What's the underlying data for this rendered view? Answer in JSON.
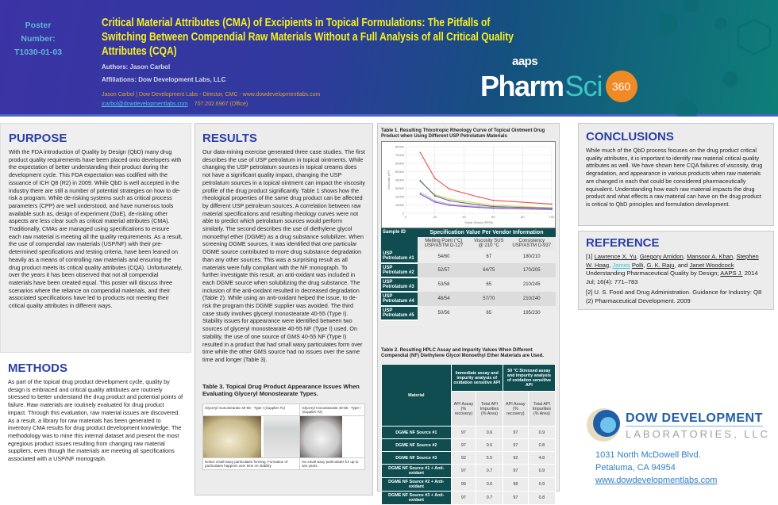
{
  "header": {
    "poster_number": [
      "Poster",
      "Number:",
      "T1030-01-03"
    ],
    "title": "Critical Material Attributes (CMA) of Excipients in Topical Formulations: The Pitfalls of Switching Between Compendial Raw Materials Without a Full Analysis of all Critical Quality Attributes (CQA)",
    "authors": "Authors: Jason Carbol",
    "affiliations": "Affiliations: Dow Development Labs, LLC",
    "contact_line": "Jason Carbol | Dow Development Labs - Director, CMC - www.dowdevelopmentlabs.com",
    "email": "jcarbol@dowdevelopmentlabs.com",
    "phone": "707.202.6967 (Office)",
    "logo": {
      "aaps": "aaps",
      "pharm": "Pharm",
      "sci": "Sci",
      "badge": "360"
    }
  },
  "purpose": {
    "heading": "PURPOSE",
    "text": "With the FDA introduction of Quality by Design (QbD) many drug product quality requirements have been placed onto developers with the expectation of better understanding their product during the development cycle. This FDA expectation was codified with the issuance of ICH Q8 (R2) in 2009. While QbD is well accepted in the industry there are still a number of potential strategies on how to de-risk a program. While de-risking systems such as critical process parameters (CPP) are well understood, and have numerous tools available such as, design of experiment (DoE), de-risking other aspects are less clear such as critical material attributes (CMA). Traditionally, CMAs are managed using specifications to ensure each raw material is meeting all the quality requirements. As a result, the use of compendial raw materials (USP/NF) with their pre-determined specifications and testing criteria, have been leaned on heavily as a means of controlling raw materials and ensuring the drug product meets its critical quality attributes (CQA). Unfortunately, over the years it has been observed that not all compendial materials have been created equal. This poster will discuss three scenarios where the reliance on compendial materials, and their associated specifications have led to products not meeting their critical quality attributes in different ways."
  },
  "methods": {
    "heading": "METHODS",
    "text": "As part of the topical drug product development cycle, quality by design is embraced and critical quality attributes are routinely stressed to better understand the drug product and potential points of failure. Raw materials are routinely evaluated for drug product impact. Through this evaluation, raw material issues are discovered. As a result, a library for raw materials has been generated to inventory CMA results for drug product development knowledge. The methodology was to mine this internal dataset and present the most egregious product issues resulting from changing raw material suppliers, even though the materials are meeting all specifications associated with a USP/NF monograph."
  },
  "results": {
    "heading": "RESULTS",
    "text": "Our data-mining exercise generated three case studies. The first describes the use of USP petrolatum in topical ointments. While changing the USP petrolatum sources in topical creams does not have a significant quality impact, changing the USP petrolatum sources in a topical ointment can impact the viscosity profile of the drug product significantly. Table 1 shows how the rheological properties of the same drug product can be affected by different USP petroleum sources. A correlation between raw material specifications and resulting rheology curves were not able to predict which petrolatum sources would perform similarly. The second describes the use of diethylene glycol monoethyl ether (DGME) as a drug substance solubilizer. When screening DGME sources, it was identified that one particular DGME source contributed to more drug substance degradation than any other sources. This was a surprising result as all materials were fully compliant with the NF monograph. To further investigate this result, an anti-oxidant was included in each DGME source when solubilizing the drug substance. The inclusion of the anti-oxidant resulted in decreased degradation (Table 2). While using an anti-oxidant helped the issue, to de-risk the program this DGME supplier was avoided. The third case study involves glyceryl monostearate 40-55 (Type I). Stability issues for appearance were identified between two sources of glyceryl monostearate 40-55 NF (Type I) used. On stability, the use of one source of GMS 40-55 NF (Type I) resulted in a product that had small waxy particulates form over time while the other GMS source had no issues over the same time and longer (Table 3).",
    "table3": {
      "caption": "Table 3. Topical Drug Product Appearance Issues When Evaluating Glyceryl Monostearate Types.",
      "col1_header": "Glyceryl monostearate 40-55 - Type I (Supplier #1)",
      "col2_header": "Glyceryl monostearate 40-55 - Type I (Supplier #2)",
      "col1_note": "Notice small waxy particulates forming. Formation of particulates happens over time on stability.",
      "col2_note": "No small waxy particulates for up to two years."
    }
  },
  "table1": {
    "caption": "Table 1. Resulting Thixotropic Rheology Curve of Topical Ointment Drug Product when Using Different USP Petrolatum Materials",
    "headers": {
      "sample_id": "Sample ID",
      "group": "Specification Value Per Vendor Information",
      "cols": [
        "Melting Point (°C) USP/ASTM D-127",
        "Viscosity SUS @ 210 °C",
        "Consistency USP/ASTM D-937"
      ]
    },
    "rows": [
      {
        "id": "USP Petrolatum #1",
        "vals": [
          "54/60",
          "67",
          "180/210"
        ]
      },
      {
        "id": "USP Petrolatum #2",
        "vals": [
          "52/57",
          "64/75",
          "170/205"
        ]
      },
      {
        "id": "USP Petrolatum #3",
        "vals": [
          "53/58",
          "65",
          "210/245"
        ]
      },
      {
        "id": "USP Petrolatum #4",
        "vals": [
          "48/54",
          "57/70",
          "210/240"
        ]
      },
      {
        "id": "USP Petrolatum #5",
        "vals": [
          "50/56",
          "65",
          "195/230"
        ]
      }
    ]
  },
  "chart_data": {
    "type": "line",
    "title": "",
    "xlabel": "Shear Stress (RPM)",
    "ylabel": "Viscosity (cP)",
    "xlim": [
      0,
      100
    ],
    "ylim": [
      0,
      80000
    ],
    "xticks": [
      0,
      20,
      40,
      60,
      80,
      100
    ],
    "yticks": [
      0,
      10000,
      20000,
      30000,
      40000,
      50000,
      60000,
      70000,
      80000
    ],
    "grid": true,
    "x": [
      10,
      20,
      30,
      50,
      60,
      100
    ],
    "series": [
      {
        "color": "#f04a4a",
        "values": [
          73000,
          42000,
          29000,
          19500,
          15500,
          11000
        ]
      },
      {
        "color": "#f5c842",
        "values": [
          38000,
          22500,
          17000,
          12000,
          9500,
          6500
        ]
      },
      {
        "color": "#3d6a9e",
        "values": [
          39000,
          21000,
          15000,
          10000,
          8000,
          6000
        ]
      },
      {
        "color": "#bdbdbd",
        "values": [
          25000,
          15000,
          11000,
          8000,
          7000,
          5000
        ]
      },
      {
        "color": "#8d4fc4",
        "values": [
          23000,
          13500,
          9500,
          7000,
          6000,
          4500
        ]
      }
    ]
  },
  "table2": {
    "caption": "Table 2. Resulting HPLC Assay and Impurity Values When Different Compendial (NF) Diethylene Glycol Monoethyl Ether Materials are Used.",
    "material": "Material",
    "group1": "Immediate assay and impurity analysis of oxidation sensitive API",
    "group2": "50 °C Stressed assay and impurity analysis of oxidation sensitive API",
    "cols": [
      "API Assay (% recovery)",
      "Total API Impurities (% Area)",
      "API Assay (% recovery)",
      "Total API Impurities (% Area)"
    ],
    "rows": [
      {
        "id": "DGME NF Source #1",
        "vals": [
          "97",
          "0.6",
          "97",
          "0.9"
        ]
      },
      {
        "id": "DGME NF Source #2",
        "vals": [
          "97",
          "0.6",
          "97",
          "0.8"
        ]
      },
      {
        "id": "DGME NF Source #3",
        "vals": [
          "92",
          "5.5",
          "92",
          "4.8"
        ]
      },
      {
        "id": "DGME NF Source #1 + Anti-oxidant",
        "vals": [
          "97",
          "0.7",
          "97",
          "0.9"
        ]
      },
      {
        "id": "DGME NF Source #2 + Anti-oxidant",
        "vals": [
          "99",
          "0.6",
          "98",
          "0.9"
        ]
      },
      {
        "id": "DGME NF Source #3 + Anti-oxidant",
        "vals": [
          "97",
          "0.7",
          "97",
          "0.8"
        ]
      }
    ]
  },
  "conclusions": {
    "heading": "CONCLUSIONS",
    "text": "While much of the QbD process focuses on the drug product critical quality attributes, it is important to identify raw material critical quality attributes as well. We have shown here CQA failures of viscosity, drug degradation, and appearance in various products when raw materials are changed in each that could be considered pharmaceutically equivalent. Understanding how each raw material impacts the drug product and what effects a raw material can have on the drug product is critical to QbD principles and formulation development."
  },
  "reference": {
    "heading": "REFERENCE",
    "ref1_prefix": "[1] ",
    "ref1_authors": [
      "Lawrence X. Yu",
      "Gregory Amidon",
      "Mansoor A. Khan",
      "Stephen W. Hoag",
      "James",
      "Polli",
      "G. K. Raju",
      "Janet Woodcock"
    ],
    "ref1_title": "Understanding Pharmaceutical Quality by Design;",
    "ref1_journal": "AAPS J.",
    "ref1_tail": "2014 Jul; 16(4): 771–783",
    "ref2": "[2] U. S. Food and Drug Administration. Guidance for Industry: Q8 (2) Pharmaceutical Development. 2009"
  },
  "company": {
    "name_line1": "DOW DEVELOPMENT",
    "name_line2": "LABORATORIES, LLC",
    "address1": "1031 North McDowell Blvd.",
    "address2": "Petaluma, CA 94954",
    "website": "www.dowdevelopmentlabs.com"
  }
}
